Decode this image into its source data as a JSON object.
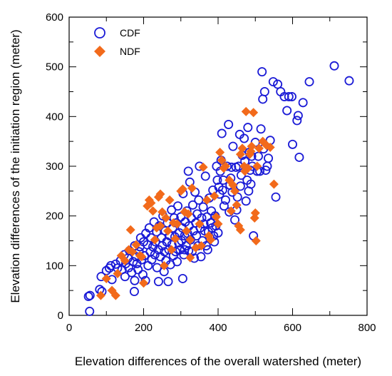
{
  "chart_data": {
    "type": "scatter",
    "xlabel": "Elevation differences of the overall watershed (meter)",
    "ylabel": "Elevation differences of the initiation region (meter)",
    "xlim": [
      0,
      800
    ],
    "ylim": [
      0,
      600
    ],
    "xticks": [
      0,
      200,
      400,
      600,
      800
    ],
    "yticks": [
      0,
      100,
      200,
      300,
      400,
      500,
      600
    ],
    "grid": false,
    "legend_position": "top-left",
    "series": [
      {
        "name": "CDF",
        "marker": "open-circle",
        "color": "#1a1ad6",
        "points": [
          [
            55,
            8
          ],
          [
            52,
            38
          ],
          [
            56,
            40
          ],
          [
            82,
            52
          ],
          [
            88,
            48
          ],
          [
            86,
            78
          ],
          [
            100,
            90
          ],
          [
            108,
            95
          ],
          [
            112,
            100
          ],
          [
            115,
            72
          ],
          [
            125,
            103
          ],
          [
            130,
            95
          ],
          [
            138,
            110
          ],
          [
            142,
            92
          ],
          [
            148,
            122
          ],
          [
            150,
            78
          ],
          [
            152,
            104
          ],
          [
            158,
            115
          ],
          [
            160,
            96
          ],
          [
            162,
            130
          ],
          [
            168,
            86
          ],
          [
            172,
            108
          ],
          [
            175,
            48
          ],
          [
            176,
            140
          ],
          [
            180,
            118
          ],
          [
            182,
            104
          ],
          [
            185,
            92
          ],
          [
            188,
            128
          ],
          [
            190,
            138
          ],
          [
            192,
            156
          ],
          [
            195,
            112
          ],
          [
            198,
            82
          ],
          [
            200,
            148
          ],
          [
            202,
            120
          ],
          [
            205,
            70
          ],
          [
            206,
            165
          ],
          [
            210,
            142
          ],
          [
            212,
            100
          ],
          [
            215,
            176
          ],
          [
            218,
            128
          ],
          [
            220,
            156
          ],
          [
            222,
            112
          ],
          [
            225,
            138
          ],
          [
            228,
            188
          ],
          [
            230,
            122
          ],
          [
            232,
            148
          ],
          [
            235,
            168
          ],
          [
            236,
            96
          ],
          [
            240,
            132
          ],
          [
            242,
            180
          ],
          [
            245,
            118
          ],
          [
            248,
            156
          ],
          [
            250,
            140
          ],
          [
            252,
            200
          ],
          [
            255,
            88
          ],
          [
            256,
            128
          ],
          [
            258,
            170
          ],
          [
            260,
            110
          ],
          [
            262,
            148
          ],
          [
            264,
            186
          ],
          [
            266,
            68
          ],
          [
            268,
            132
          ],
          [
            270,
            160
          ],
          [
            272,
            102
          ],
          [
            275,
            212
          ],
          [
            276,
            142
          ],
          [
            278,
            176
          ],
          [
            280,
            120
          ],
          [
            282,
            196
          ],
          [
            284,
            158
          ],
          [
            286,
            128
          ],
          [
            288,
            186
          ],
          [
            290,
            108
          ],
          [
            292,
            220
          ],
          [
            294,
            146
          ],
          [
            296,
            166
          ],
          [
            298,
            132
          ],
          [
            300,
            198
          ],
          [
            302,
            150
          ],
          [
            304,
            176
          ],
          [
            305,
            74
          ],
          [
            306,
            245
          ],
          [
            308,
            122
          ],
          [
            310,
            160
          ],
          [
            312,
            188
          ],
          [
            314,
            140
          ],
          [
            316,
            210
          ],
          [
            318,
            165
          ],
          [
            320,
            290
          ],
          [
            321,
            130
          ],
          [
            322,
            180
          ],
          [
            324,
            268
          ],
          [
            326,
            152
          ],
          [
            328,
            196
          ],
          [
            330,
            128
          ],
          [
            332,
            222
          ],
          [
            334,
            170
          ],
          [
            336,
            115
          ],
          [
            338,
            248
          ],
          [
            340,
            186
          ],
          [
            342,
            160
          ],
          [
            344,
            204
          ],
          [
            346,
            140
          ],
          [
            348,
            232
          ],
          [
            350,
            300
          ],
          [
            352,
            176
          ],
          [
            354,
            118
          ],
          [
            356,
            196
          ],
          [
            358,
            150
          ],
          [
            360,
            218
          ],
          [
            362,
            184
          ],
          [
            364,
            170
          ],
          [
            366,
            280
          ],
          [
            368,
            140
          ],
          [
            370,
            198
          ],
          [
            372,
            132
          ],
          [
            374,
            168
          ],
          [
            376,
            236
          ],
          [
            378,
            156
          ],
          [
            380,
            186
          ],
          [
            382,
            210
          ],
          [
            384,
            176
          ],
          [
            386,
            252
          ],
          [
            388,
            160
          ],
          [
            390,
            148
          ],
          [
            392,
            200
          ],
          [
            394,
            180
          ],
          [
            396,
            300
          ],
          [
            398,
            272
          ],
          [
            400,
            166
          ],
          [
            402,
            258
          ],
          [
            404,
            244
          ],
          [
            406,
            290
          ],
          [
            408,
            312
          ],
          [
            410,
            366
          ],
          [
            412,
            252
          ],
          [
            414,
            272
          ],
          [
            416,
            220
          ],
          [
            420,
            232
          ],
          [
            424,
            300
          ],
          [
            428,
            384
          ],
          [
            430,
            208
          ],
          [
            432,
            262
          ],
          [
            434,
            276
          ],
          [
            436,
            298
          ],
          [
            438,
            248
          ],
          [
            440,
            340
          ],
          [
            445,
            192
          ],
          [
            448,
            298
          ],
          [
            450,
            212
          ],
          [
            452,
            238
          ],
          [
            455,
            300
          ],
          [
            458,
            364
          ],
          [
            460,
            260
          ],
          [
            462,
            282
          ],
          [
            465,
            322
          ],
          [
            470,
            356
          ],
          [
            472,
            310
          ],
          [
            475,
            230
          ],
          [
            478,
            272
          ],
          [
            480,
            378
          ],
          [
            482,
            250
          ],
          [
            484,
            328
          ],
          [
            486,
            292
          ],
          [
            488,
            264
          ],
          [
            490,
            320
          ],
          [
            492,
            300
          ],
          [
            495,
            160
          ],
          [
            500,
            348
          ],
          [
            505,
            290
          ],
          [
            508,
            320
          ],
          [
            512,
            290
          ],
          [
            515,
            375
          ],
          [
            518,
            490
          ],
          [
            520,
            435
          ],
          [
            522,
            335
          ],
          [
            525,
            450
          ],
          [
            528,
            292
          ],
          [
            532,
            300
          ],
          [
            535,
            316
          ],
          [
            540,
            352
          ],
          [
            548,
            470
          ],
          [
            555,
            238
          ],
          [
            560,
            465
          ],
          [
            568,
            450
          ],
          [
            578,
            440
          ],
          [
            585,
            412
          ],
          [
            590,
            440
          ],
          [
            598,
            440
          ],
          [
            600,
            344
          ],
          [
            612,
            392
          ],
          [
            615,
            402
          ],
          [
            618,
            318
          ],
          [
            628,
            428
          ],
          [
            645,
            470
          ],
          [
            712,
            502
          ],
          [
            752,
            472
          ],
          [
            176,
            70
          ],
          [
            240,
            68
          ],
          [
            310,
            132
          ]
        ]
      },
      {
        "name": "NDF",
        "marker": "filled-diamond",
        "color": "#f26a1b",
        "points": [
          [
            85,
            40
          ],
          [
            100,
            74
          ],
          [
            115,
            50
          ],
          [
            125,
            40
          ],
          [
            130,
            84
          ],
          [
            140,
            120
          ],
          [
            150,
            110
          ],
          [
            160,
            132
          ],
          [
            170,
            128
          ],
          [
            180,
            142
          ],
          [
            190,
            120
          ],
          [
            200,
            65
          ],
          [
            210,
            220
          ],
          [
            215,
            232
          ],
          [
            220,
            226
          ],
          [
            225,
            210
          ],
          [
            230,
            152
          ],
          [
            235,
            176
          ],
          [
            240,
            238
          ],
          [
            245,
            244
          ],
          [
            250,
            208
          ],
          [
            255,
            100
          ],
          [
            260,
            196
          ],
          [
            265,
            170
          ],
          [
            270,
            232
          ],
          [
            275,
            132
          ],
          [
            280,
            186
          ],
          [
            290,
            184
          ],
          [
            300,
            250
          ],
          [
            305,
            254
          ],
          [
            310,
            208
          ],
          [
            315,
            170
          ],
          [
            320,
            204
          ],
          [
            325,
            152
          ],
          [
            330,
            256
          ],
          [
            340,
            136
          ],
          [
            350,
            184
          ],
          [
            360,
            298
          ],
          [
            370,
            232
          ],
          [
            375,
            160
          ],
          [
            380,
            152
          ],
          [
            390,
            240
          ],
          [
            400,
            184
          ],
          [
            405,
            328
          ],
          [
            410,
            312
          ],
          [
            415,
            296
          ],
          [
            420,
            300
          ],
          [
            430,
            272
          ],
          [
            440,
            262
          ],
          [
            445,
            250
          ],
          [
            450,
            222
          ],
          [
            455,
            180
          ],
          [
            460,
            324
          ],
          [
            465,
            336
          ],
          [
            470,
            300
          ],
          [
            475,
            410
          ],
          [
            480,
            296
          ],
          [
            485,
            324
          ],
          [
            490,
            340
          ],
          [
            495,
            408
          ],
          [
            498,
            196
          ],
          [
            500,
            206
          ],
          [
            502,
            150
          ],
          [
            505,
            300
          ],
          [
            510,
            336
          ],
          [
            520,
            350
          ],
          [
            530,
            342
          ],
          [
            540,
            338
          ],
          [
            550,
            264
          ],
          [
            460,
            172
          ],
          [
            395,
            198
          ],
          [
            355,
            140
          ],
          [
            285,
            154
          ],
          [
            195,
            118
          ],
          [
            165,
            172
          ],
          [
            245,
            180
          ],
          [
            325,
            116
          ],
          [
            435,
            210
          ],
          [
            472,
            290
          ],
          [
            488,
            330
          ]
        ]
      }
    ]
  }
}
